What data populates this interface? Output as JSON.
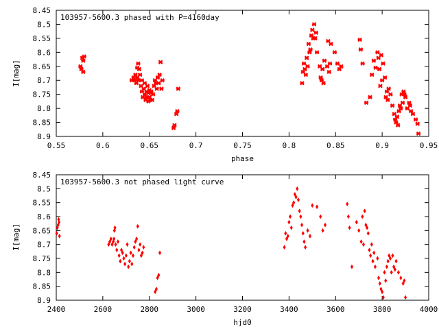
{
  "chart_data": [
    {
      "type": "scatter",
      "title": "103957-5600.3 phased with P=4160day",
      "xlabel": "phase",
      "ylabel": "I[mag]",
      "xlim": [
        0.55,
        0.95
      ],
      "ylim": [
        8.9,
        8.45
      ],
      "y_inverted": true,
      "grid": false,
      "x_ticks": [
        "0.55",
        "0.6",
        "0.65",
        "0.7",
        "0.75",
        "0.8",
        "0.85",
        "0.9",
        "0.95"
      ],
      "y_ticks": [
        "8.45",
        "8.5",
        "8.55",
        "8.6",
        "8.65",
        "8.7",
        "8.75",
        "8.8",
        "8.85",
        "8.9"
      ],
      "marker": "cross",
      "color": "#ff0000",
      "x": [
        0.576,
        0.577,
        0.578,
        0.579,
        0.579,
        0.58,
        0.631,
        0.633,
        0.634,
        0.635,
        0.636,
        0.637,
        0.637,
        0.638,
        0.638,
        0.639,
        0.64,
        0.641,
        0.642,
        0.642,
        0.643,
        0.644,
        0.645,
        0.645,
        0.646,
        0.647,
        0.647,
        0.648,
        0.649,
        0.649,
        0.65,
        0.65,
        0.651,
        0.652,
        0.652,
        0.653,
        0.654,
        0.655,
        0.656,
        0.657,
        0.658,
        0.659,
        0.66,
        0.661,
        0.662,
        0.663,
        0.664,
        0.676,
        0.677,
        0.679,
        0.68,
        0.681,
        0.814,
        0.815,
        0.816,
        0.817,
        0.818,
        0.819,
        0.82,
        0.821,
        0.822,
        0.823,
        0.824,
        0.825,
        0.826,
        0.827,
        0.828,
        0.829,
        0.83,
        0.833,
        0.834,
        0.835,
        0.836,
        0.837,
        0.838,
        0.841,
        0.842,
        0.843,
        0.844,
        0.845,
        0.849,
        0.852,
        0.854,
        0.856,
        0.876,
        0.877,
        0.879,
        0.883,
        0.887,
        0.889,
        0.891,
        0.893,
        0.895,
        0.896,
        0.897,
        0.898,
        0.899,
        0.9,
        0.901,
        0.903,
        0.904,
        0.905,
        0.906,
        0.907,
        0.909,
        0.911,
        0.913,
        0.914,
        0.915,
        0.916,
        0.917,
        0.918,
        0.919,
        0.92,
        0.921,
        0.922,
        0.923,
        0.924,
        0.925,
        0.927,
        0.929,
        0.93,
        0.931,
        0.933,
        0.936,
        0.938,
        0.939
      ],
      "y": [
        8.65,
        8.66,
        8.62,
        8.63,
        8.67,
        8.615,
        8.7,
        8.69,
        8.7,
        8.68,
        8.71,
        8.655,
        8.69,
        8.64,
        8.7,
        8.66,
        8.68,
        8.72,
        8.7,
        8.74,
        8.76,
        8.73,
        8.75,
        8.71,
        8.77,
        8.74,
        8.76,
        8.72,
        8.745,
        8.775,
        8.735,
        8.76,
        8.77,
        8.745,
        8.74,
        8.77,
        8.75,
        8.72,
        8.7,
        8.71,
        8.73,
        8.69,
        8.71,
        8.68,
        8.635,
        8.73,
        8.7,
        8.87,
        8.86,
        8.82,
        8.81,
        8.73,
        8.71,
        8.67,
        8.64,
        8.66,
        8.68,
        8.62,
        8.65,
        8.57,
        8.6,
        8.59,
        8.54,
        8.52,
        8.55,
        8.5,
        8.55,
        8.53,
        8.6,
        8.65,
        8.69,
        8.7,
        8.66,
        8.71,
        8.63,
        8.65,
        8.56,
        8.67,
        8.64,
        8.57,
        8.6,
        8.64,
        8.66,
        8.65,
        8.555,
        8.59,
        8.64,
        8.78,
        8.76,
        8.68,
        8.63,
        8.655,
        8.6,
        8.62,
        8.66,
        8.72,
        8.61,
        8.7,
        8.64,
        8.69,
        8.76,
        8.74,
        8.77,
        8.73,
        8.75,
        8.79,
        8.82,
        8.84,
        8.85,
        8.83,
        8.86,
        8.81,
        8.79,
        8.8,
        8.75,
        8.78,
        8.74,
        8.75,
        8.76,
        8.8,
        8.78,
        8.79,
        8.81,
        8.82,
        8.84,
        8.855,
        8.89
      ]
    },
    {
      "type": "scatter",
      "title": "103957-5600.3 not phased light curve",
      "xlabel": "hjd0",
      "ylabel": "I[mag]",
      "xlim": [
        2400,
        4000
      ],
      "ylim": [
        8.9,
        8.45
      ],
      "y_inverted": true,
      "grid": false,
      "x_ticks": [
        "2400",
        "2600",
        "2800",
        "3000",
        "3200",
        "3400",
        "3600",
        "3800",
        "4000"
      ],
      "y_ticks": [
        "8.45",
        "8.5",
        "8.55",
        "8.6",
        "8.65",
        "8.7",
        "8.75",
        "8.8",
        "8.85",
        "8.9"
      ],
      "marker": "diamond",
      "color": "#ff0000",
      "x": [
        2402,
        2405,
        2408,
        2410,
        2412,
        2414,
        2625,
        2630,
        2635,
        2640,
        2645,
        2648,
        2650,
        2652,
        2655,
        2660,
        2665,
        2670,
        2675,
        2680,
        2685,
        2690,
        2695,
        2700,
        2705,
        2710,
        2715,
        2720,
        2725,
        2730,
        2735,
        2740,
        2745,
        2750,
        2755,
        2760,
        2765,
        2770,
        2775,
        2825,
        2830,
        2835,
        2840,
        2845,
        3380,
        3385,
        3390,
        3395,
        3400,
        3405,
        3410,
        3415,
        3420,
        3425,
        3430,
        3435,
        3440,
        3445,
        3450,
        3455,
        3460,
        3465,
        3470,
        3480,
        3490,
        3500,
        3520,
        3535,
        3545,
        3555,
        3650,
        3655,
        3660,
        3670,
        3690,
        3700,
        3710,
        3715,
        3720,
        3725,
        3730,
        3735,
        3740,
        3745,
        3750,
        3755,
        3760,
        3765,
        3770,
        3780,
        3785,
        3790,
        3795,
        3800,
        3805,
        3810,
        3815,
        3820,
        3825,
        3830,
        3835,
        3840,
        3845,
        3850,
        3855,
        3860,
        3870,
        3880,
        3890,
        3895,
        3900
      ],
      "y": [
        8.66,
        8.64,
        8.63,
        8.61,
        8.62,
        8.67,
        8.7,
        8.69,
        8.68,
        8.7,
        8.69,
        8.68,
        8.65,
        8.64,
        8.7,
        8.72,
        8.69,
        8.74,
        8.76,
        8.72,
        8.73,
        8.75,
        8.77,
        8.74,
        8.7,
        8.78,
        8.76,
        8.73,
        8.77,
        8.74,
        8.71,
        8.69,
        8.68,
        8.635,
        8.72,
        8.7,
        8.74,
        8.73,
        8.71,
        8.87,
        8.86,
        8.82,
        8.81,
        8.73,
        8.71,
        8.66,
        8.68,
        8.67,
        8.62,
        8.6,
        8.64,
        8.56,
        8.55,
        8.52,
        8.53,
        8.5,
        8.54,
        8.58,
        8.6,
        8.63,
        8.66,
        8.69,
        8.71,
        8.65,
        8.67,
        8.56,
        8.565,
        8.6,
        8.65,
        8.63,
        8.555,
        8.6,
        8.64,
        8.78,
        8.62,
        8.65,
        8.69,
        8.6,
        8.7,
        8.58,
        8.63,
        8.64,
        8.66,
        8.72,
        8.74,
        8.7,
        8.76,
        8.73,
        8.78,
        8.75,
        8.82,
        8.84,
        8.86,
        8.87,
        8.89,
        8.8,
        8.83,
        8.78,
        8.76,
        8.74,
        8.75,
        8.8,
        8.74,
        8.78,
        8.79,
        8.76,
        8.8,
        8.82,
        8.84,
        8.83,
        8.89
      ]
    }
  ]
}
